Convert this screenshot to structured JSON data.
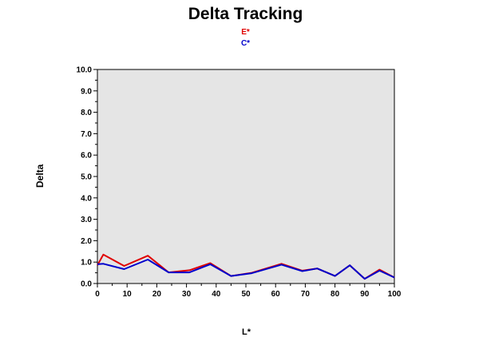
{
  "chart_data": {
    "type": "line",
    "title": "Delta Tracking",
    "xlabel": "L*",
    "ylabel": "Delta",
    "xlim": [
      0,
      100
    ],
    "ylim": [
      0,
      10
    ],
    "xticks": [
      "0",
      "10",
      "20",
      "30",
      "40",
      "50",
      "60",
      "70",
      "80",
      "90",
      "100"
    ],
    "yticks": [
      "0.0",
      "1.0",
      "2.0",
      "3.0",
      "4.0",
      "5.0",
      "6.0",
      "7.0",
      "8.0",
      "9.0",
      "10.0"
    ],
    "grid": false,
    "background": "#e5e5e5",
    "legend_position": "top-center",
    "series": [
      {
        "name": "E*",
        "color": "#e00000",
        "x": [
          0,
          2,
          9,
          17,
          24,
          31,
          38,
          45,
          52,
          62,
          69,
          74,
          80,
          85,
          90,
          95,
          100
        ],
        "y": [
          0.85,
          1.35,
          0.82,
          1.3,
          0.52,
          0.62,
          0.95,
          0.35,
          0.5,
          0.92,
          0.6,
          0.7,
          0.35,
          0.85,
          0.22,
          0.65,
          0.28
        ]
      },
      {
        "name": "C*",
        "color": "#0000cc",
        "x": [
          0,
          2,
          9,
          17,
          24,
          31,
          38,
          45,
          52,
          62,
          69,
          74,
          80,
          85,
          90,
          95,
          100
        ],
        "y": [
          0.9,
          0.92,
          0.67,
          1.12,
          0.52,
          0.52,
          0.9,
          0.35,
          0.48,
          0.88,
          0.58,
          0.7,
          0.35,
          0.85,
          0.22,
          0.6,
          0.28
        ]
      }
    ]
  }
}
